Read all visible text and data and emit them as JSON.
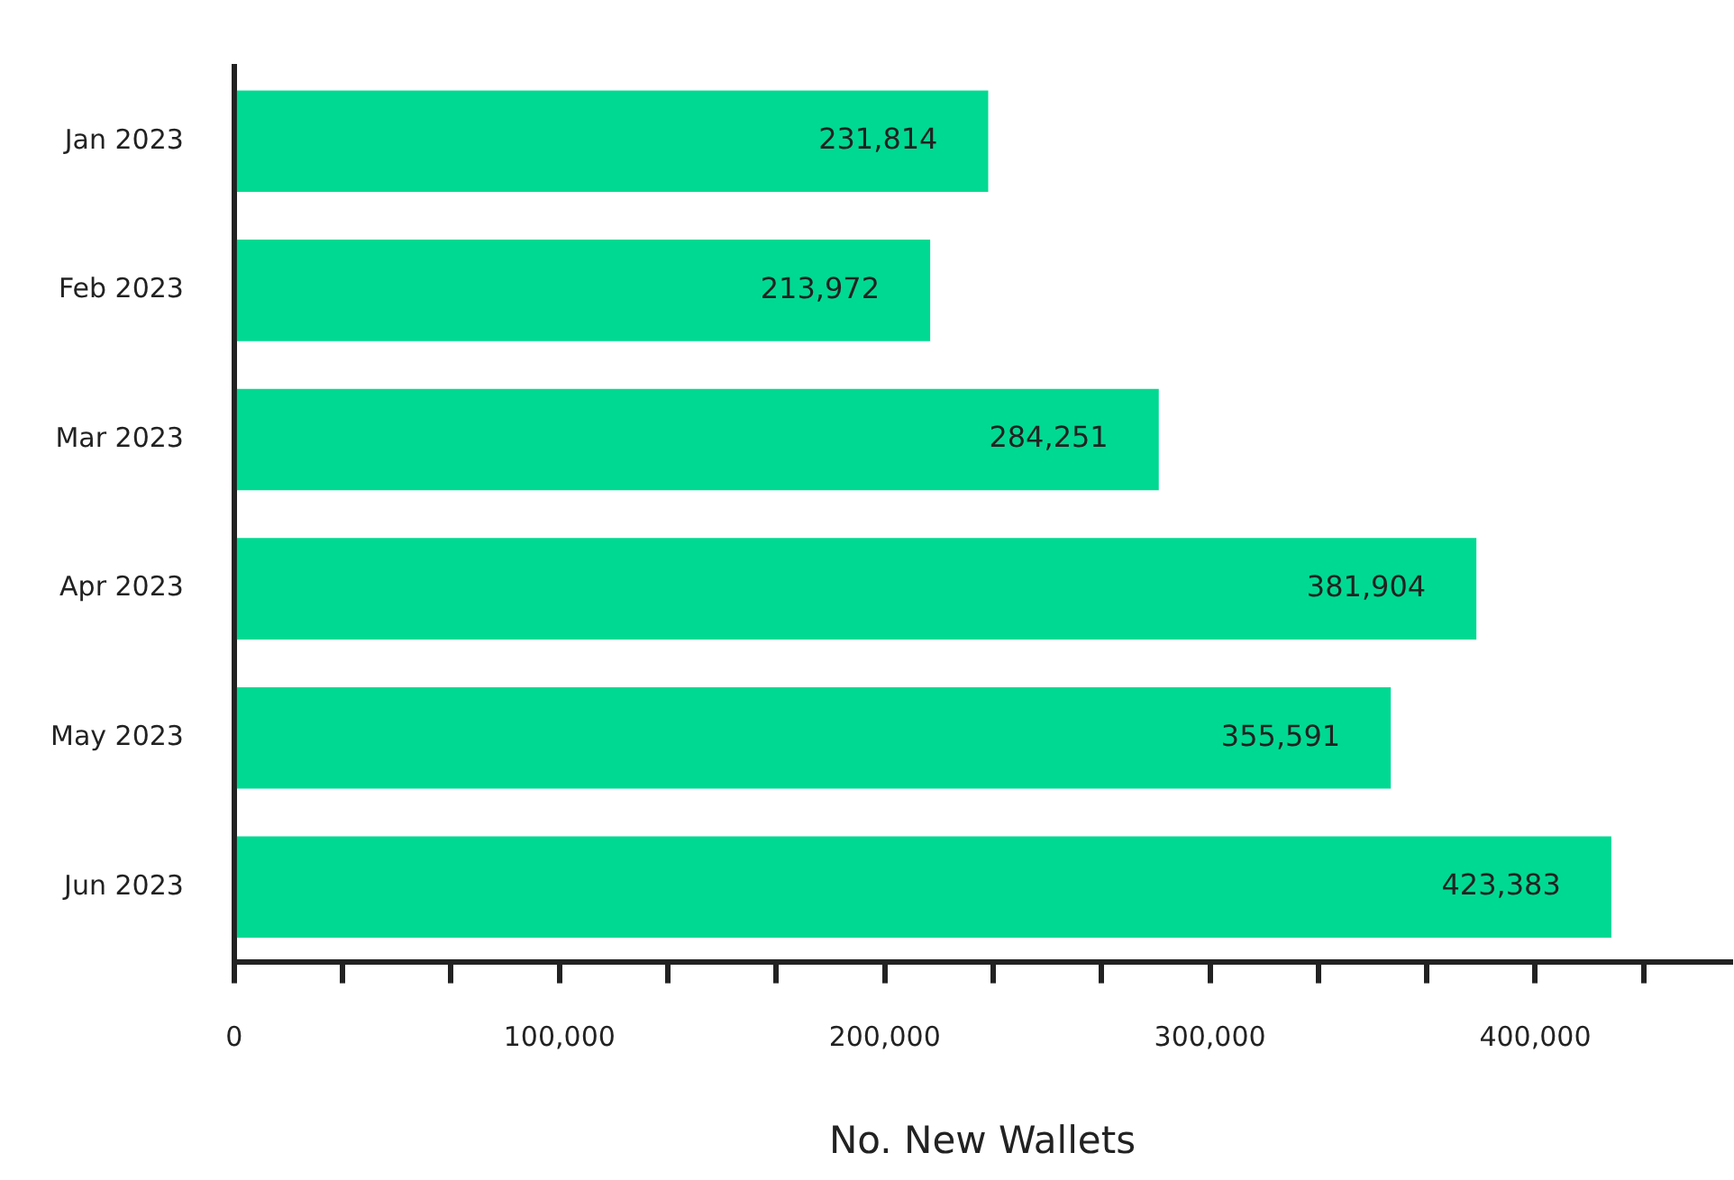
{
  "chart_data": {
    "type": "bar",
    "orientation": "horizontal",
    "xlabel": "No. New Wallets",
    "categories": [
      "Jan 2023",
      "Feb 2023",
      "Mar 2023",
      "Apr 2023",
      "May 2023",
      "Jun 2023"
    ],
    "values": [
      231814,
      213972,
      284251,
      381904,
      355591,
      423383
    ],
    "value_labels": [
      "231,814",
      "213,972",
      "284,251",
      "381,904",
      "355,591",
      "423,383"
    ],
    "color": "#00d992",
    "grid": false,
    "legend": false,
    "xlim": [
      0,
      460000
    ],
    "xticks": [
      {
        "value": 0,
        "label": "0"
      },
      {
        "value": 33333,
        "label": null
      },
      {
        "value": 66667,
        "label": null
      },
      {
        "value": 100000,
        "label": "100,000"
      },
      {
        "value": 133333,
        "label": null
      },
      {
        "value": 166667,
        "label": null
      },
      {
        "value": 200000,
        "label": "200,000"
      },
      {
        "value": 233333,
        "label": null
      },
      {
        "value": 266667,
        "label": null
      },
      {
        "value": 300000,
        "label": "300,000"
      },
      {
        "value": 333333,
        "label": null
      },
      {
        "value": 366667,
        "label": null
      },
      {
        "value": 400000,
        "label": "400,000"
      },
      {
        "value": 433333,
        "label": null
      }
    ]
  }
}
